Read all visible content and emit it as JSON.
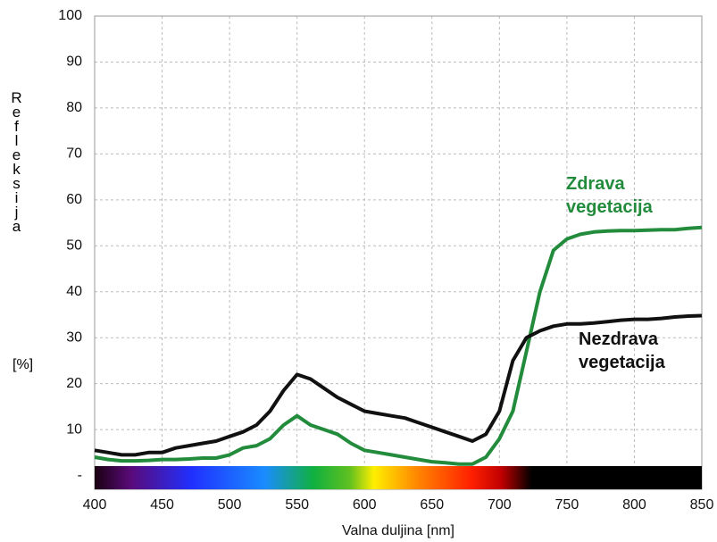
{
  "chart_data": {
    "type": "line",
    "y_label": "Refleksija",
    "y_unit": "[%]",
    "x_label": "Valna duljina [nm]",
    "x": [
      400,
      410,
      420,
      430,
      440,
      450,
      460,
      470,
      480,
      490,
      500,
      510,
      520,
      530,
      540,
      550,
      560,
      570,
      580,
      590,
      600,
      610,
      620,
      630,
      640,
      650,
      660,
      670,
      680,
      690,
      700,
      710,
      720,
      730,
      740,
      750,
      760,
      770,
      780,
      790,
      800,
      810,
      820,
      830,
      840,
      850
    ],
    "series": [
      {
        "name": "Zdrava vegetacija",
        "color": "#228b3c",
        "values": [
          4,
          3.5,
          3.2,
          3.2,
          3.3,
          3.5,
          3.5,
          3.6,
          3.8,
          3.8,
          4.5,
          6,
          6.5,
          8,
          11,
          13,
          11,
          10,
          9,
          7,
          5.5,
          5,
          4.5,
          4,
          3.5,
          3,
          2.8,
          2.5,
          2.5,
          4,
          8,
          14,
          27,
          40,
          49,
          51.5,
          52.5,
          53,
          53.2,
          53.3,
          53.3,
          53.4,
          53.5,
          53.5,
          53.8,
          54
        ]
      },
      {
        "name": "Nezdrava vegetacija",
        "color": "#111111",
        "values": [
          5.5,
          5,
          4.5,
          4.5,
          5,
          5,
          6,
          6.5,
          7,
          7.5,
          8.5,
          9.5,
          11,
          14,
          18.5,
          22,
          21,
          19,
          17,
          15.5,
          14,
          13.5,
          13,
          12.5,
          11.5,
          10.5,
          9.5,
          8.5,
          7.5,
          9,
          14,
          25,
          30,
          31.5,
          32.5,
          33,
          33,
          33.2,
          33.5,
          33.8,
          34,
          34,
          34.2,
          34.5,
          34.7,
          34.8
        ]
      }
    ],
    "xlim": [
      400,
      850
    ],
    "xticks": [
      400,
      450,
      500,
      550,
      600,
      650,
      700,
      750,
      800,
      850
    ],
    "ylim": [
      -3,
      100
    ],
    "yticks": [
      {
        "value": 0,
        "label": "-"
      },
      10,
      20,
      30,
      40,
      50,
      60,
      70,
      80,
      90,
      100
    ],
    "grid": true
  }
}
